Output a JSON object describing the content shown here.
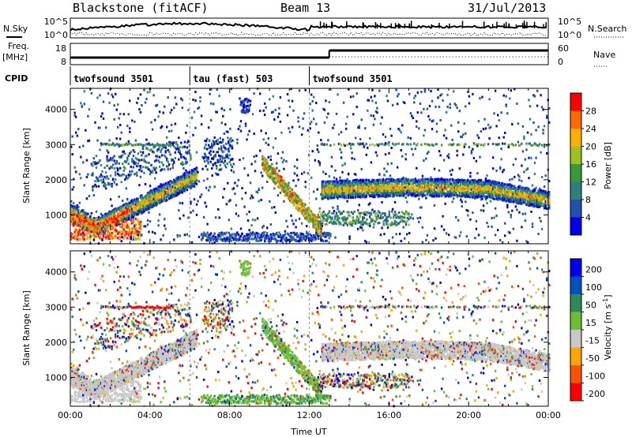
{
  "header": {
    "title": "Blackstone (fitACF)",
    "beam": "Beam 13",
    "date": "31/Jul/2013"
  },
  "top_panels": {
    "nsky_label": "N.Sky",
    "nsearch_label": "N.Search",
    "nsky_ticks": [
      "10^5",
      "10^0"
    ],
    "nsearch_ticks": [
      "10^5",
      "10^0"
    ],
    "freq_label": "Freq.",
    "freq_unit": "[MHz]",
    "freq_ticks": [
      "18",
      "8"
    ],
    "nave_label": "Nave",
    "nave_ticks": [
      "60",
      "0"
    ],
    "cpid_label": "CPID",
    "cpid_segments": [
      {
        "label": "twofsound 3501",
        "start_h": 0,
        "end_h": 6
      },
      {
        "label": "tau (fast) 503",
        "start_h": 6,
        "end_h": 12
      },
      {
        "label": "twofsound 3501",
        "start_h": 12,
        "end_h": 24
      }
    ],
    "freq_step_h": 13.0
  },
  "chart_data": [
    {
      "type": "heatmap",
      "title": "",
      "quantity": "Power",
      "ylabel": "Slant Range [km]",
      "xlabel": "",
      "xlim": [
        0,
        24
      ],
      "ylim": [
        180,
        4600
      ],
      "yticks": [
        1000,
        2000,
        3000,
        4000
      ],
      "colorbar_label": "Power [dB]",
      "colorbar_ticks": [
        "4",
        "8",
        "12",
        "16",
        "20",
        "24",
        "28"
      ],
      "colormap": [
        "#0000ee",
        "#2050b0",
        "#2f7f7f",
        "#3a9a3a",
        "#a0c020",
        "#ffb000",
        "#ff6a00",
        "#ff0000"
      ],
      "features": [
        {
          "name": "morning E/F band",
          "x": [
            0,
            1,
            2,
            3,
            4,
            5,
            6
          ],
          "y": [
            900,
            700,
            950,
            1300,
            1600,
            1900,
            2100
          ]
        },
        {
          "name": "late band",
          "x": [
            13,
            15,
            17,
            19,
            21,
            23,
            24
          ],
          "y": [
            1650,
            1700,
            1750,
            1750,
            1700,
            1600,
            1500
          ]
        },
        {
          "name": "3000 km echoes",
          "x": [
            1.5,
            5
          ],
          "y": [
            3000,
            3000
          ]
        }
      ]
    },
    {
      "type": "heatmap",
      "title": "",
      "quantity": "Velocity",
      "ylabel": "Slant Range [km]",
      "xlabel": "Time UT",
      "xlim": [
        0,
        24
      ],
      "ylim": [
        180,
        4600
      ],
      "yticks": [
        1000,
        2000,
        3000,
        4000
      ],
      "xticks": [
        "00:00",
        "04:00",
        "08:00",
        "12:00",
        "16:00",
        "20:00",
        "00:00"
      ],
      "colorbar_label": "Velocity [m s^-1]",
      "colorbar_ticks": [
        "200",
        "100",
        "50",
        "15",
        "-15",
        "-50",
        "-100",
        "-200"
      ],
      "colormap": [
        "#0000ee",
        "#0050c0",
        "#2e8b57",
        "#6cc030",
        "#c8c8c8",
        "#ffa500",
        "#ff5000",
        "#ff0000"
      ]
    }
  ],
  "axes_text": {
    "ylabel_top": "Slant Range [km]",
    "ylabel_bottom": "Slant Range [km]",
    "xlabel": "Time UT",
    "ytick_labels": [
      "1000",
      "2000",
      "3000",
      "4000"
    ],
    "xtick_labels": [
      "00:00",
      "04:00",
      "08:00",
      "12:00",
      "16:00",
      "20:00",
      "00:00"
    ],
    "power_bar_label": "Power [dB]",
    "velocity_bar_label": "Velocity [m s",
    "velocity_bar_sup": "-1",
    "velocity_bar_close": "]"
  }
}
